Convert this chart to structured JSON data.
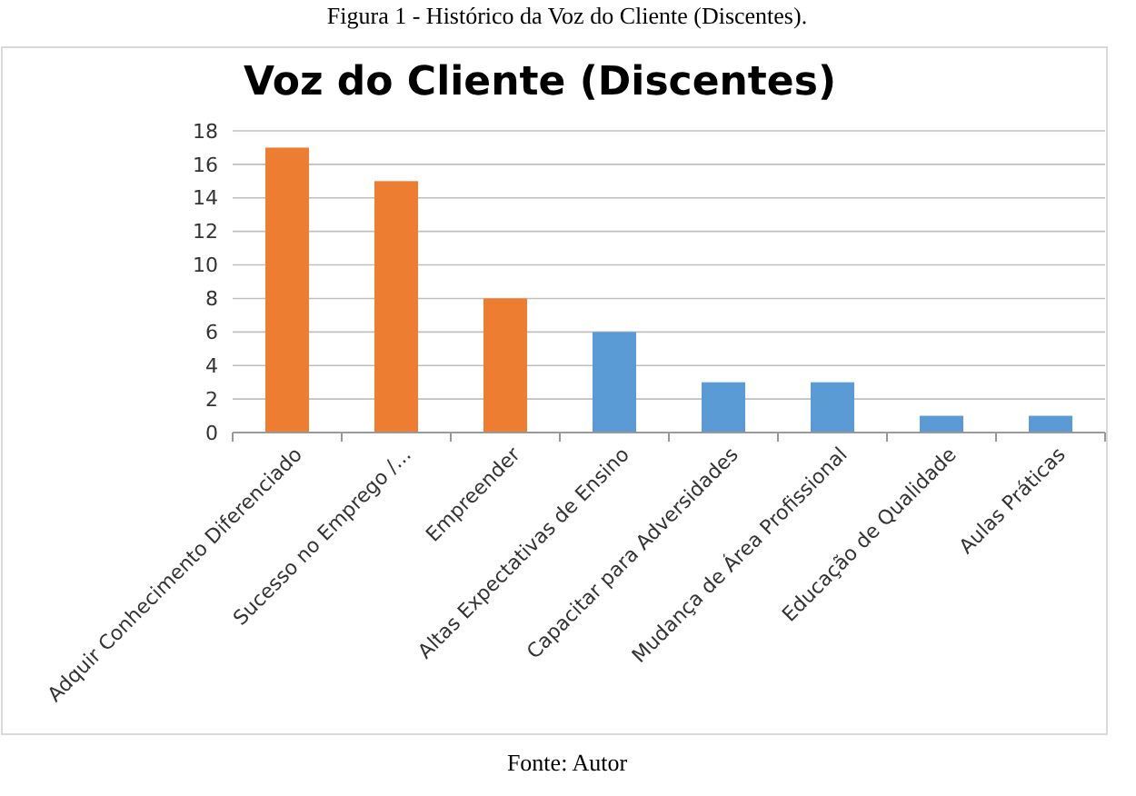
{
  "chart_data": {
    "type": "bar",
    "title": "Voz do Cliente (Discentes)",
    "categories": [
      "Adquir Conhecimento Diferenciado",
      "Sucesso no Emprego /...",
      "Empreender",
      "Altas Expectativas de Ensino",
      "Capacitar para Adversidades",
      "Mudança de Área Profissional",
      "Educação de Qualidade",
      "Aulas Práticas"
    ],
    "values": [
      17,
      15,
      8,
      6,
      3,
      3,
      1,
      1
    ],
    "colors": [
      "#ed7d31",
      "#ed7d31",
      "#ed7d31",
      "#5b9bd5",
      "#5b9bd5",
      "#5b9bd5",
      "#5b9bd5",
      "#5b9bd5"
    ],
    "ylim": [
      0,
      18
    ],
    "yticks": [
      0,
      2,
      4,
      6,
      8,
      10,
      12,
      14,
      16,
      18
    ],
    "grid": "y",
    "annotations": [
      "Figura 1 - Histórico da Voz do Cliente (Discentes).",
      "Fonte: Autor"
    ]
  }
}
